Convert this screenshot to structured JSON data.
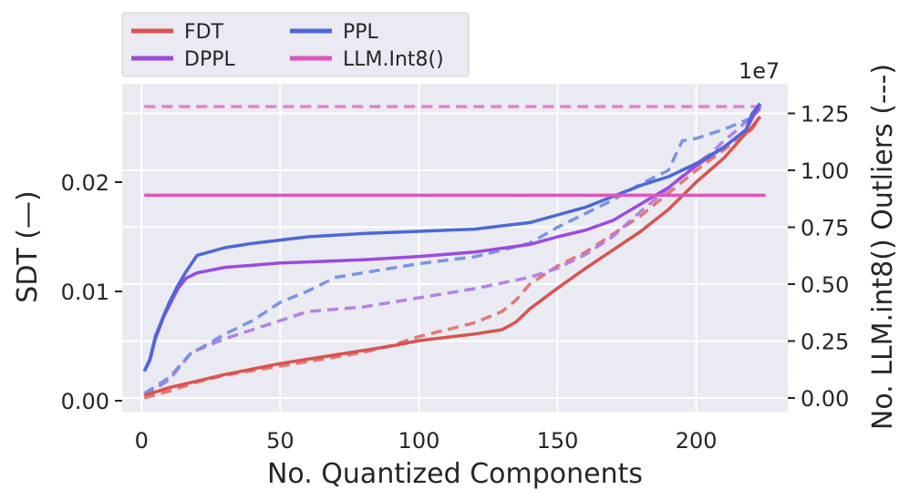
{
  "chart_data": {
    "type": "line",
    "xlabel": "No. Quantized Components",
    "ylabel_left": "SDT (—)",
    "ylabel_right": "No. LLM.int8() Outliers (---)",
    "right_axis_exponent": "1e7",
    "xlim": [
      -7,
      233
    ],
    "ylim_left": [
      -0.001,
      0.029
    ],
    "ylim_right": [
      -0.06,
      1.38
    ],
    "x_ticks": [
      0,
      50,
      100,
      150,
      200
    ],
    "x_tick_labels": [
      "0",
      "50",
      "100",
      "150",
      "200"
    ],
    "y_left_ticks": [
      0.0,
      0.01,
      0.02
    ],
    "y_left_tick_labels": [
      "0.00",
      "0.01",
      "0.02"
    ],
    "y_right_ticks": [
      0.0,
      0.25,
      0.5,
      0.75,
      1.0,
      1.25
    ],
    "y_right_tick_labels": [
      "0.00",
      "0.25",
      "0.50",
      "0.75",
      "1.00",
      "1.25"
    ],
    "grid": true,
    "legend_position": "top-left outside",
    "series": [
      {
        "name": "FDT",
        "color": "#d9534f",
        "axis": "left",
        "style": "solid",
        "x": [
          1,
          5,
          10,
          20,
          30,
          40,
          50,
          60,
          70,
          80,
          90,
          100,
          110,
          120,
          130,
          135,
          140,
          150,
          160,
          170,
          180,
          190,
          200,
          210,
          218,
          220,
          223
        ],
        "y": [
          0.0005,
          0.0008,
          0.0012,
          0.0018,
          0.0024,
          0.0029,
          0.0034,
          0.0038,
          0.0042,
          0.0046,
          0.005,
          0.0055,
          0.0058,
          0.0061,
          0.0065,
          0.0072,
          0.0084,
          0.0103,
          0.0121,
          0.0138,
          0.0155,
          0.0175,
          0.02,
          0.0222,
          0.0245,
          0.025,
          0.026
        ]
      },
      {
        "name": "DPPL",
        "color": "#9b4be0",
        "axis": "left",
        "style": "solid",
        "x": [
          1,
          3,
          5,
          8,
          10,
          13,
          16,
          20,
          30,
          40,
          50,
          60,
          80,
          100,
          120,
          140,
          150,
          160,
          170,
          180,
          190,
          200,
          210,
          218,
          220,
          223
        ],
        "y": [
          0.0027,
          0.0037,
          0.0057,
          0.0077,
          0.0087,
          0.0102,
          0.0112,
          0.0117,
          0.0122,
          0.0124,
          0.0126,
          0.0127,
          0.0129,
          0.0132,
          0.0136,
          0.0143,
          0.015,
          0.0156,
          0.0165,
          0.018,
          0.0195,
          0.0215,
          0.0232,
          0.0248,
          0.0258,
          0.027
        ]
      },
      {
        "name": "PPL",
        "color": "#4c68d7",
        "axis": "left",
        "style": "solid",
        "x": [
          1,
          3,
          5,
          8,
          10,
          13,
          16,
          20,
          30,
          40,
          50,
          60,
          80,
          100,
          120,
          140,
          150,
          160,
          170,
          180,
          190,
          200,
          210,
          218,
          220,
          223
        ],
        "y": [
          0.0027,
          0.0038,
          0.0059,
          0.0078,
          0.009,
          0.0105,
          0.0118,
          0.0133,
          0.014,
          0.0144,
          0.0147,
          0.015,
          0.0153,
          0.0155,
          0.0157,
          0.0163,
          0.017,
          0.0177,
          0.0187,
          0.0197,
          0.0205,
          0.0217,
          0.0232,
          0.0248,
          0.0262,
          0.0272
        ]
      },
      {
        "name": "LLM.Int8()",
        "color": "#dd55b8",
        "axis": "left",
        "style": "solid",
        "x": [
          1,
          225
        ],
        "y": [
          0.0188,
          0.0188
        ]
      }
    ],
    "outlier_series": [
      {
        "for": "FDT",
        "color": "#e3726e",
        "axis": "right",
        "style": "dashed",
        "x": [
          1,
          10,
          20,
          30,
          40,
          50,
          60,
          70,
          80,
          90,
          100,
          110,
          120,
          130,
          135,
          140,
          150,
          160,
          170,
          180,
          190,
          200,
          210,
          220,
          223
        ],
        "y": [
          0.0,
          0.03,
          0.07,
          0.1,
          0.12,
          0.14,
          0.16,
          0.18,
          0.2,
          0.23,
          0.27,
          0.3,
          0.33,
          0.38,
          0.43,
          0.5,
          0.58,
          0.64,
          0.72,
          0.8,
          0.9,
          1.0,
          1.09,
          1.18,
          1.23
        ]
      },
      {
        "for": "DPPL",
        "color": "#b07ce6",
        "axis": "right",
        "style": "dashed",
        "x": [
          1,
          10,
          18,
          20,
          30,
          40,
          50,
          60,
          80,
          100,
          120,
          140,
          150,
          160,
          170,
          180,
          190,
          200,
          205,
          210,
          215,
          220,
          223
        ],
        "y": [
          0.01,
          0.08,
          0.2,
          0.21,
          0.26,
          0.3,
          0.34,
          0.38,
          0.4,
          0.44,
          0.48,
          0.53,
          0.57,
          0.63,
          0.71,
          0.82,
          0.92,
          1.03,
          1.07,
          1.13,
          1.18,
          1.24,
          1.28
        ]
      },
      {
        "for": "PPL",
        "color": "#7390e0",
        "axis": "right",
        "style": "dashed",
        "x": [
          1,
          10,
          18,
          20,
          30,
          40,
          50,
          60,
          70,
          80,
          90,
          100,
          120,
          140,
          150,
          160,
          170,
          180,
          190,
          195,
          200,
          210,
          220,
          223
        ],
        "y": [
          0.02,
          0.09,
          0.2,
          0.21,
          0.28,
          0.34,
          0.42,
          0.47,
          0.53,
          0.55,
          0.57,
          0.59,
          0.62,
          0.68,
          0.75,
          0.81,
          0.87,
          0.94,
          1.0,
          1.13,
          1.14,
          1.18,
          1.23,
          1.27
        ]
      },
      {
        "for": "LLM.Int8()",
        "color": "#e07cc6",
        "axis": "right",
        "style": "dashed",
        "x": [
          1,
          225
        ],
        "y": [
          1.28,
          1.28
        ]
      }
    ]
  }
}
